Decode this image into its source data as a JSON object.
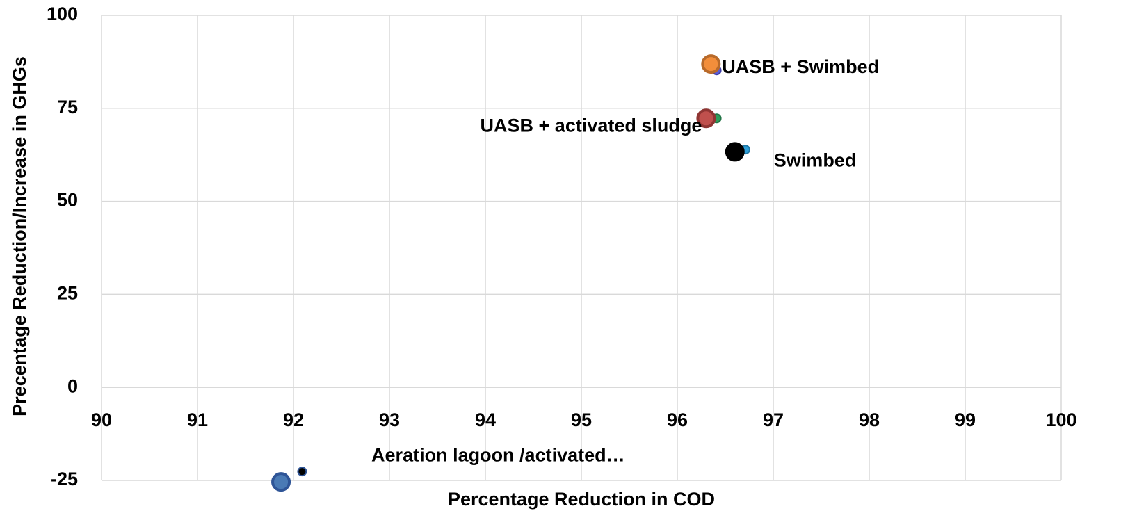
{
  "chart_data": {
    "type": "scatter",
    "x_label": "Percentage Reduction in COD",
    "y_label": "Precentage Reduction/Increase in GHGs",
    "xlim": [
      90,
      100
    ],
    "xticks": [
      90,
      91,
      92,
      93,
      94,
      95,
      96,
      97,
      98,
      99,
      100
    ],
    "ylim": [
      -25,
      100
    ],
    "yticks": [
      -25,
      0,
      25,
      50,
      75,
      100
    ],
    "grid": true,
    "series": [
      {
        "color": "#5b5bd6",
        "edge": "#3f3fa8",
        "marker": "small",
        "x": [
          96.41
        ],
        "values": [
          85.2
        ]
      },
      {
        "color": "#f28e3b",
        "edge": "#b86a2a",
        "marker": "large",
        "x": [
          96.35
        ],
        "values": [
          86.9
        ],
        "label": "UASB + Swimbed"
      },
      {
        "color": "#2e9e5b",
        "edge": "#217446",
        "marker": "small",
        "x": [
          96.41
        ],
        "values": [
          72.3
        ]
      },
      {
        "color": "#c0504d",
        "edge": "#8f3533",
        "marker": "large",
        "x": [
          96.3
        ],
        "values": [
          72.3
        ],
        "label": "UASB + activated sludge"
      },
      {
        "color": "#2e9fd8",
        "edge": "#1f78a6",
        "marker": "small",
        "x": [
          96.71
        ],
        "values": [
          63.9
        ]
      },
      {
        "color": "#000000",
        "edge": "#000000",
        "marker": "large",
        "x": [
          96.6
        ],
        "values": [
          63.3
        ],
        "label": "Swimbed"
      },
      {
        "color": "#4a7ab5",
        "edge": "#2f5597",
        "marker": "large",
        "x": [
          91.87
        ],
        "values": [
          -25.4
        ],
        "label": "Aeration lagoon /activated…"
      },
      {
        "color": "#000000",
        "edge": "#2f5597",
        "marker": "small",
        "x": [
          92.09
        ],
        "values": [
          -22.6
        ]
      }
    ]
  }
}
